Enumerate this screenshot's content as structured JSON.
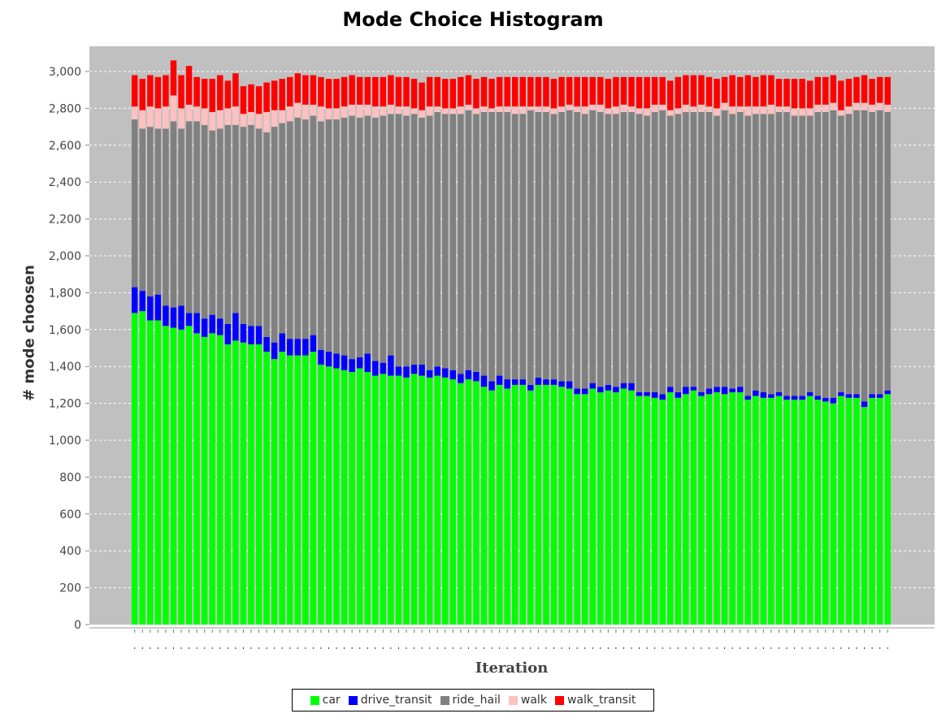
{
  "chart_data": {
    "type": "bar",
    "stacked": true,
    "title": "Mode Choice Histogram",
    "xlabel": "Iteration",
    "ylabel": "# mode choosen",
    "ylim": [
      0,
      3000
    ],
    "yticks": [
      "0",
      "200",
      "400",
      "600",
      "800",
      "1,000",
      "1,200",
      "1,400",
      "1,600",
      "1,800",
      "2,000",
      "2,200",
      "2,400",
      "2,600",
      "2,800",
      "3,000"
    ],
    "grid": true,
    "legend_position": "bottom",
    "colors": {
      "plot_background": "#c0c0c0",
      "gridline": "#ffffff"
    },
    "series": [
      {
        "name": "car",
        "color": "#00ff00",
        "values": [
          1690,
          1700,
          1650,
          1650,
          1620,
          1610,
          1600,
          1620,
          1580,
          1560,
          1580,
          1570,
          1520,
          1540,
          1530,
          1520,
          1520,
          1480,
          1440,
          1480,
          1460,
          1460,
          1460,
          1480,
          1410,
          1400,
          1390,
          1380,
          1370,
          1390,
          1370,
          1350,
          1360,
          1350,
          1350,
          1340,
          1360,
          1350,
          1340,
          1350,
          1340,
          1330,
          1310,
          1330,
          1320,
          1290,
          1270,
          1300,
          1280,
          1300,
          1300,
          1270,
          1300,
          1300,
          1300,
          1290,
          1280,
          1250,
          1250,
          1280,
          1260,
          1270,
          1260,
          1280,
          1270,
          1240,
          1240,
          1230,
          1220,
          1260,
          1230,
          1250,
          1270,
          1240,
          1250,
          1260,
          1250,
          1260,
          1260,
          1220,
          1240,
          1230,
          1230,
          1240,
          1220,
          1220,
          1220,
          1240,
          1220,
          1210,
          1200,
          1240,
          1230,
          1230,
          1180,
          1230,
          1230,
          1250
        ]
      },
      {
        "name": "drive_transit",
        "color": "#0000ff",
        "values": [
          140,
          110,
          130,
          140,
          110,
          110,
          130,
          70,
          110,
          100,
          100,
          90,
          110,
          150,
          100,
          100,
          100,
          80,
          90,
          100,
          90,
          90,
          90,
          90,
          80,
          80,
          80,
          80,
          70,
          60,
          100,
          80,
          60,
          110,
          50,
          60,
          50,
          60,
          40,
          50,
          50,
          50,
          50,
          50,
          50,
          60,
          50,
          50,
          50,
          30,
          30,
          30,
          40,
          30,
          30,
          30,
          40,
          30,
          30,
          30,
          30,
          30,
          30,
          30,
          40,
          20,
          20,
          30,
          30,
          30,
          30,
          40,
          20,
          20,
          30,
          30,
          40,
          20,
          30,
          20,
          30,
          30,
          20,
          20,
          20,
          20,
          20,
          20,
          20,
          20,
          30,
          20,
          20,
          20,
          30,
          20,
          20,
          20
        ]
      },
      {
        "name": "ride_hail",
        "color": "#808080",
        "values": [
          910,
          880,
          920,
          900,
          960,
          1010,
          960,
          1040,
          1040,
          1050,
          1000,
          1030,
          1080,
          1020,
          1070,
          1090,
          1070,
          1110,
          1170,
          1140,
          1180,
          1200,
          1190,
          1190,
          1240,
          1260,
          1270,
          1290,
          1320,
          1300,
          1290,
          1320,
          1340,
          1310,
          1370,
          1360,
          1360,
          1340,
          1380,
          1380,
          1380,
          1390,
          1410,
          1410,
          1400,
          1430,
          1460,
          1430,
          1450,
          1440,
          1440,
          1490,
          1440,
          1450,
          1440,
          1460,
          1470,
          1500,
          1490,
          1480,
          1490,
          1470,
          1480,
          1470,
          1470,
          1510,
          1500,
          1520,
          1540,
          1470,
          1510,
          1490,
          1490,
          1520,
          1500,
          1470,
          1500,
          1490,
          1490,
          1520,
          1500,
          1510,
          1520,
          1520,
          1540,
          1520,
          1520,
          1500,
          1540,
          1550,
          1560,
          1500,
          1520,
          1540,
          1580,
          1530,
          1540,
          1510
        ]
      },
      {
        "name": "walk",
        "color": "#ffc0c0",
        "values": [
          70,
          100,
          110,
          110,
          120,
          140,
          110,
          90,
          80,
          90,
          100,
          100,
          90,
          100,
          70,
          70,
          80,
          110,
          90,
          70,
          80,
          80,
          80,
          60,
          80,
          60,
          60,
          60,
          60,
          70,
          60,
          60,
          50,
          50,
          40,
          50,
          30,
          40,
          50,
          30,
          30,
          30,
          40,
          30,
          30,
          30,
          20,
          30,
          30,
          40,
          40,
          20,
          30,
          30,
          30,
          30,
          30,
          30,
          40,
          30,
          40,
          30,
          40,
          40,
          30,
          30,
          40,
          40,
          30,
          30,
          30,
          40,
          30,
          40,
          30,
          40,
          40,
          40,
          30,
          50,
          40,
          40,
          50,
          30,
          30,
          40,
          40,
          40,
          40,
          40,
          40,
          30,
          40,
          40,
          40,
          40,
          40,
          40
        ]
      },
      {
        "name": "walk_transit",
        "color": "#ff0000",
        "values": [
          170,
          170,
          170,
          170,
          170,
          190,
          180,
          210,
          160,
          160,
          180,
          190,
          150,
          180,
          150,
          150,
          150,
          160,
          160,
          170,
          160,
          160,
          160,
          160,
          160,
          160,
          160,
          160,
          160,
          150,
          150,
          160,
          160,
          160,
          160,
          160,
          160,
          150,
          160,
          160,
          160,
          160,
          160,
          160,
          160,
          160,
          160,
          160,
          160,
          160,
          160,
          160,
          160,
          160,
          160,
          160,
          150,
          160,
          160,
          150,
          150,
          160,
          160,
          150,
          160,
          170,
          170,
          150,
          150,
          160,
          170,
          160,
          170,
          160,
          160,
          160,
          140,
          170,
          160,
          170,
          160,
          170,
          160,
          150,
          150,
          160,
          160,
          150,
          150,
          150,
          150,
          160,
          150,
          140,
          150,
          140,
          140,
          150
        ]
      }
    ]
  }
}
